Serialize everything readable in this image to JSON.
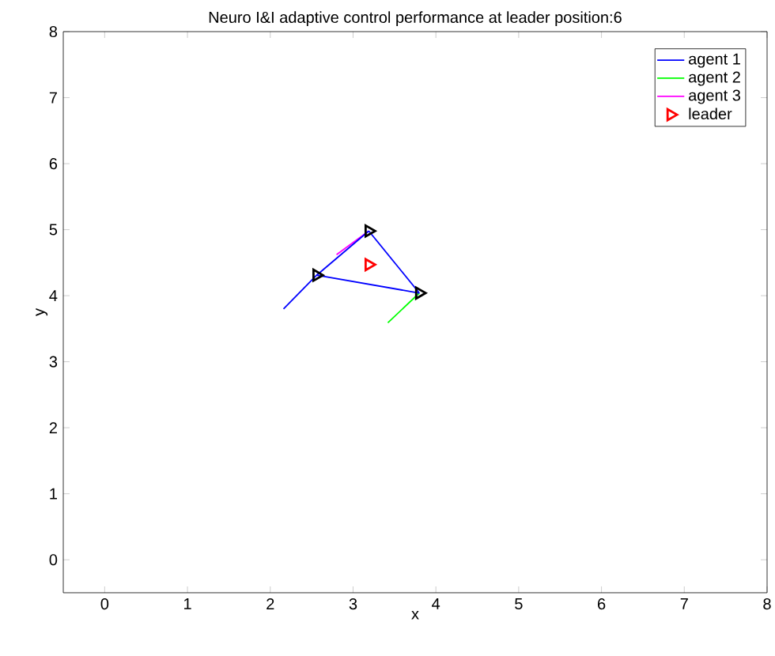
{
  "chart_data": {
    "type": "line",
    "title": "Neuro I&I adaptive control performance at leader position:6",
    "xlabel": "x",
    "ylabel": "y",
    "xlim": [
      -0.5,
      8
    ],
    "ylim": [
      -0.5,
      8
    ],
    "xticks": [
      0,
      1,
      2,
      3,
      4,
      5,
      6,
      7,
      8
    ],
    "yticks": [
      0,
      1,
      2,
      3,
      4,
      5,
      6,
      7,
      8
    ],
    "grid": false,
    "legend": "top right",
    "series": [
      {
        "name": "agent 1",
        "color": "#0000ff",
        "x": [
          2.16,
          2.56
        ],
        "values": [
          3.8,
          4.31
        ]
      },
      {
        "name": "agent 2",
        "color": "#00ff00",
        "x": [
          3.42,
          3.8
        ],
        "values": [
          3.59,
          4.04
        ]
      },
      {
        "name": "agent 3",
        "color": "#ff00ff",
        "x": [
          2.8,
          3.19
        ],
        "values": [
          4.62,
          4.98
        ]
      },
      {
        "name": "leader",
        "type": "scatter",
        "marker": "triangle",
        "color": "#ff0000",
        "x": [
          3.19
        ],
        "values": [
          4.47
        ]
      },
      {
        "type": "line",
        "color": "#0000ff",
        "x": [
          2.56,
          3.19
        ],
        "values": [
          4.31,
          4.98
        ]
      },
      {
        "type": "line",
        "color": "#0000ff",
        "x": [
          3.19,
          3.8
        ],
        "values": [
          4.98,
          4.04
        ]
      },
      {
        "type": "line",
        "color": "#0000ff",
        "x": [
          2.56,
          3.8
        ],
        "values": [
          4.31,
          4.04
        ]
      },
      {
        "type": "scatter",
        "marker": "triangle",
        "color": "#000000",
        "x": [
          2.56,
          3.19,
          3.8
        ],
        "values": [
          4.31,
          4.98,
          4.04
        ]
      }
    ]
  }
}
